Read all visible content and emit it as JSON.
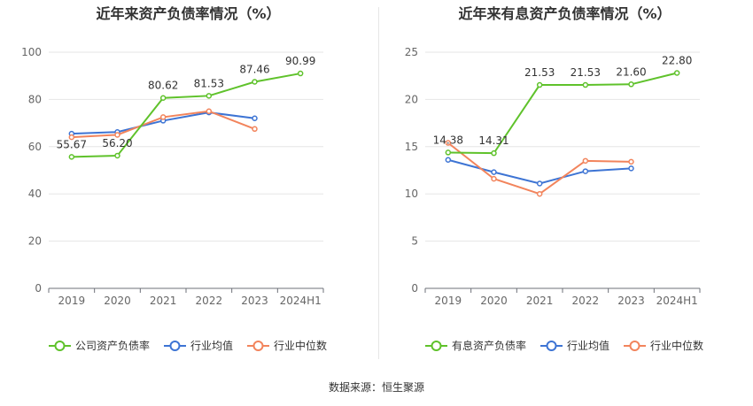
{
  "chart_data": [
    {
      "type": "line",
      "title": "近年来资产负债率情况（%）",
      "categories": [
        "2019",
        "2020",
        "2021",
        "2022",
        "2023",
        "2024H1"
      ],
      "ylim": [
        0,
        100
      ],
      "yticks": [
        0,
        20,
        40,
        60,
        80,
        100
      ],
      "grid": true,
      "legend_placement": "bottom",
      "series": [
        {
          "name": "公司资产负债率",
          "color": "#5fc22b",
          "values": [
            55.67,
            56.2,
            80.62,
            81.53,
            87.46,
            90.99
          ],
          "labels": [
            "55.67",
            "56.20",
            "80.62",
            "81.53",
            "87.46",
            "90.99"
          ]
        },
        {
          "name": "行业均值",
          "color": "#3d74d4",
          "values": [
            65.5,
            66.2,
            71.0,
            74.5,
            72.0,
            null
          ],
          "labels": []
        },
        {
          "name": "行业中位数",
          "color": "#f2845c",
          "values": [
            64.0,
            65.0,
            72.5,
            75.0,
            67.5,
            null
          ],
          "labels": []
        }
      ]
    },
    {
      "type": "line",
      "title": "近年来有息资产负债率情况（%）",
      "categories": [
        "2019",
        "2020",
        "2021",
        "2022",
        "2023",
        "2024H1"
      ],
      "ylim": [
        0,
        25
      ],
      "yticks": [
        0,
        5,
        10,
        15,
        20,
        25
      ],
      "grid": true,
      "legend_placement": "bottom",
      "series": [
        {
          "name": "有息资产负债率",
          "color": "#5fc22b",
          "values": [
            14.38,
            14.31,
            21.53,
            21.53,
            21.6,
            22.8
          ],
          "labels": [
            "14.38",
            "14.31",
            "21.53",
            "21.53",
            "21.60",
            "22.80"
          ]
        },
        {
          "name": "行业均值",
          "color": "#3d74d4",
          "values": [
            13.6,
            12.3,
            11.1,
            12.4,
            12.7,
            null
          ],
          "labels": []
        },
        {
          "name": "行业中位数",
          "color": "#f2845c",
          "values": [
            15.4,
            11.6,
            10.0,
            13.5,
            13.4,
            null
          ],
          "labels": []
        }
      ]
    }
  ],
  "footer": {
    "source": "数据来源：恒生聚源"
  }
}
